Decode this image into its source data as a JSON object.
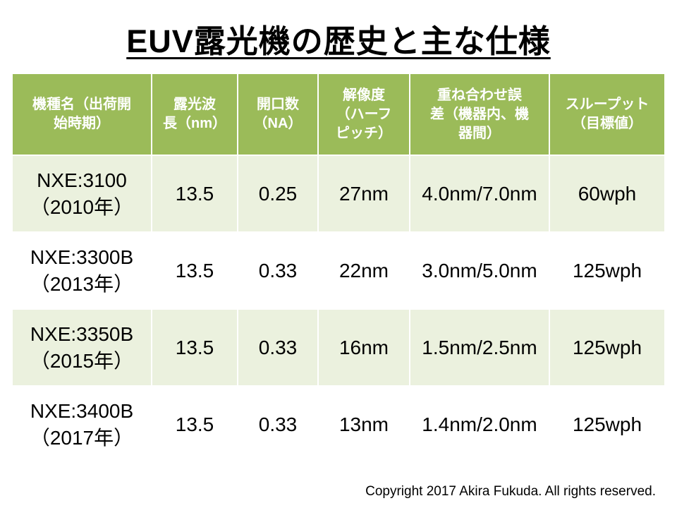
{
  "title": "EUV露光機の歴史と主な仕様",
  "footer": "Copyright 2017 Akira Fukuda. All rights reserved.",
  "colors": {
    "header_bg": "#9BBB59",
    "header_text": "#FFFFFF",
    "band_row_bg": "#EBF1DE",
    "plain_row_bg": "#FFFFFF",
    "title_text": "#000000"
  },
  "table": {
    "headers": [
      "機種名（出荷開\n始時期）",
      "露光波\n長（nm）",
      "開口数\n（NA）",
      "解像度\n（ハーフ\nピッチ）",
      "重ね合わせ誤\n差（機器内、機\n器間）",
      "スループット\n（目標値）"
    ],
    "rows": [
      {
        "cells": [
          "NXE:3100\n（2010年）",
          "13.5",
          "0.25",
          "27nm",
          "4.0nm/7.0nm",
          "60wph"
        ]
      },
      {
        "cells": [
          "NXE:3300B\n（2013年）",
          "13.5",
          "0.33",
          "22nm",
          "3.0nm/5.0nm",
          "125wph"
        ]
      },
      {
        "cells": [
          "NXE:3350B\n（2015年）",
          "13.5",
          "0.33",
          "16nm",
          "1.5nm/2.5nm",
          "125wph"
        ]
      },
      {
        "cells": [
          "NXE:3400B\n（2017年）",
          "13.5",
          "0.33",
          "13nm",
          "1.4nm/2.0nm",
          "125wph"
        ]
      }
    ]
  },
  "chart_data": {
    "type": "table",
    "title": "EUV露光機の歴史と主な仕様",
    "columns": [
      "機種名（出荷開始時期）",
      "露光波長（nm）",
      "開口数（NA）",
      "解像度（ハーフピッチ）",
      "重ね合わせ誤差（機器内、機器間）",
      "スループット（目標値）"
    ],
    "rows": [
      [
        "NXE:3100（2010年）",
        13.5,
        0.25,
        "27nm",
        "4.0nm/7.0nm",
        "60wph"
      ],
      [
        "NXE:3300B（2013年）",
        13.5,
        0.33,
        "22nm",
        "3.0nm/5.0nm",
        "125wph"
      ],
      [
        "NXE:3350B（2015年）",
        13.5,
        0.33,
        "16nm",
        "1.5nm/2.5nm",
        "125wph"
      ],
      [
        "NXE:3400B（2017年）",
        13.5,
        0.33,
        "13nm",
        "1.4nm/2.0nm",
        "125wph"
      ]
    ]
  }
}
